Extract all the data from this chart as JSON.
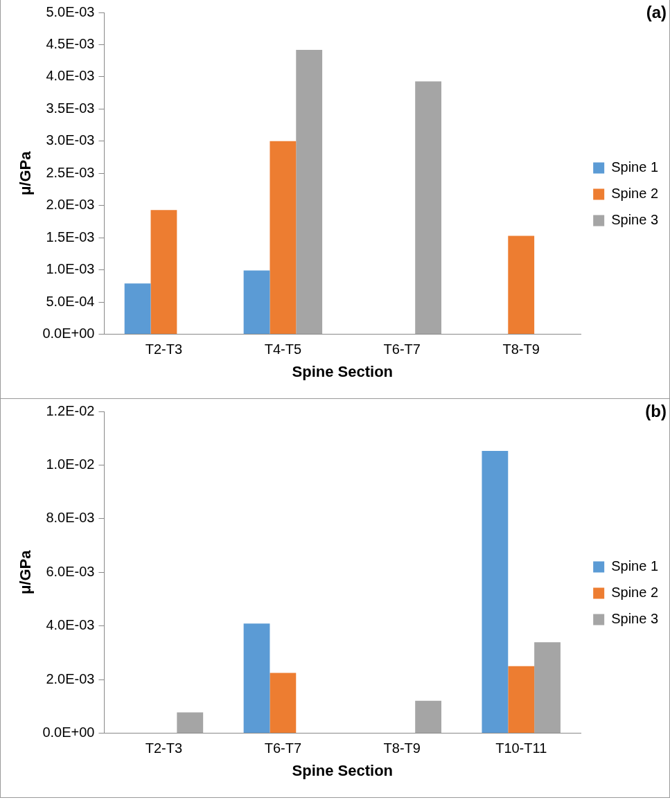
{
  "chart_data": [
    {
      "type": "bar",
      "annotations": [
        "(a)"
      ],
      "xlabel": "Spine Section",
      "ylabel": "μ/GPa",
      "categories": [
        "T2-T3",
        "T4-T5",
        "T6-T7",
        "T8-T9"
      ],
      "series": [
        {
          "name": "Spine 1",
          "color": "#5b9bd5",
          "values": [
            0.00079,
            0.00099,
            null,
            null
          ]
        },
        {
          "name": "Spine 2",
          "color": "#ed7d31",
          "values": [
            0.00193,
            0.003,
            null,
            0.00153
          ]
        },
        {
          "name": "Spine 3",
          "color": "#a5a5a5",
          "values": [
            null,
            0.00442,
            0.00393,
            null
          ]
        }
      ],
      "ylim": [
        0,
        0.005
      ],
      "yticks": [
        {
          "value": 0,
          "label": "0.0E+00"
        },
        {
          "value": 0.0005,
          "label": "5.0E-04"
        },
        {
          "value": 0.001,
          "label": "1.0E-03"
        },
        {
          "value": 0.0015,
          "label": "1.5E-03"
        },
        {
          "value": 0.002,
          "label": "2.0E-03"
        },
        {
          "value": 0.0025,
          "label": "2.5E-03"
        },
        {
          "value": 0.003,
          "label": "3.0E-03"
        },
        {
          "value": 0.0035,
          "label": "3.5E-03"
        },
        {
          "value": 0.004,
          "label": "4.0E-03"
        },
        {
          "value": 0.0045,
          "label": "4.5E-03"
        },
        {
          "value": 0.005,
          "label": "5.0E-03"
        }
      ],
      "grid": false,
      "legend": "right"
    },
    {
      "type": "bar",
      "annotations": [
        "(b)"
      ],
      "xlabel": "Spine Section",
      "ylabel": "μ/GPa",
      "categories": [
        "T2-T3",
        "T6-T7",
        "T8-T9",
        "T10-T11"
      ],
      "series": [
        {
          "name": "Spine 1",
          "color": "#5b9bd5",
          "values": [
            null,
            0.00409,
            null,
            0.01053
          ]
        },
        {
          "name": "Spine 2",
          "color": "#ed7d31",
          "values": [
            null,
            0.00225,
            null,
            0.0025
          ]
        },
        {
          "name": "Spine 3",
          "color": "#a5a5a5",
          "values": [
            0.00078,
            null,
            0.00121,
            0.00339
          ]
        }
      ],
      "ylim": [
        0,
        0.012
      ],
      "yticks": [
        {
          "value": 0,
          "label": "0.0E+00"
        },
        {
          "value": 0.002,
          "label": "2.0E-03"
        },
        {
          "value": 0.004,
          "label": "4.0E-03"
        },
        {
          "value": 0.006,
          "label": "6.0E-03"
        },
        {
          "value": 0.008,
          "label": "8.0E-03"
        },
        {
          "value": 0.01,
          "label": "1.0E-02"
        },
        {
          "value": 0.012,
          "label": "1.2E-02"
        }
      ],
      "grid": false,
      "legend": "right"
    }
  ]
}
